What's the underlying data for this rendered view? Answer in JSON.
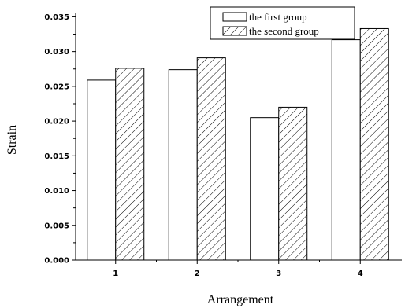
{
  "chart_data": {
    "type": "bar",
    "xlabel": "Arrangement",
    "ylabel": "Strain",
    "categories": [
      "1",
      "2",
      "3",
      "4"
    ],
    "series": [
      {
        "name": "the first group",
        "values": [
          0.0259,
          0.0274,
          0.0205,
          0.0317
        ],
        "pattern": "none"
      },
      {
        "name": "the second group",
        "values": [
          0.0276,
          0.0291,
          0.022,
          0.0333
        ],
        "pattern": "diagonal-hatch"
      }
    ],
    "ylim": [
      0.0,
      0.0355
    ],
    "yticks": [
      "0.000",
      "0.005",
      "0.010",
      "0.015",
      "0.020",
      "0.025",
      "0.030",
      "0.035"
    ],
    "ytick_values": [
      0.0,
      0.005,
      0.01,
      0.015,
      0.02,
      0.025,
      0.03,
      0.035
    ],
    "grid": false,
    "legend_position": "top-right",
    "colors": {
      "bar_stroke": "#000000",
      "bar_fill": "#ffffff",
      "hatch": "#000000"
    }
  }
}
